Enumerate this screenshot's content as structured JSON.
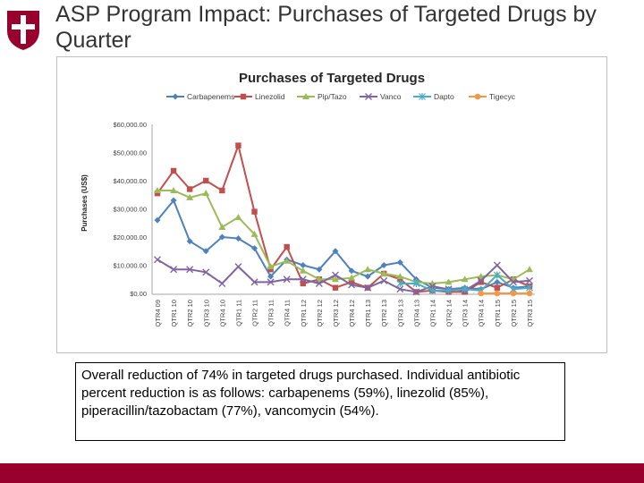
{
  "slide": {
    "title": "ASP Program Impact: Purchases of Targeted Drugs by Quarter",
    "note": "Overall reduction of 74% in targeted drugs purchased.  Individual antibiotic percent reduction is as follows: carbapenems (59%), linezolid (85%), piperacillin/tazobactam (77%), vancomycin (54%).",
    "colors": {
      "brand": "#98002e",
      "footer": "#98002e"
    }
  },
  "chart_data": {
    "type": "line",
    "title": "Purchases of Targeted Drugs",
    "ylabel": "Purchases (US$)",
    "xlabel": "",
    "ylim": [
      0,
      60000
    ],
    "yticks": [
      "$0.00",
      "$10,000.00",
      "$20,000.00",
      "$30,000.00",
      "$40,000.00",
      "$50,000.00",
      "$60,000.00"
    ],
    "grid": false,
    "legend": "top",
    "categories": [
      "QTR4 09",
      "QTR1 10",
      "QTR2 10",
      "QTR3 10",
      "QTR4 10",
      "QTR1 11",
      "QTR2 11",
      "QTR3 11",
      "QTR4 11",
      "QTR1 12",
      "QTR2 12",
      "QTR3 12",
      "QTR4 12",
      "QTR1 13",
      "QTR2 13",
      "QTR3 13",
      "QTR4 13",
      "QTR1 14",
      "QTR2 14",
      "QTR3 14",
      "QTR4 14",
      "QTR1 15",
      "QTR2 15",
      "QTR3 15"
    ],
    "series": [
      {
        "name": "Carbapenems",
        "color": "#4f81bd",
        "marker": "diamond",
        "values": [
          26000,
          33000,
          18500,
          15000,
          20000,
          19500,
          16000,
          6000,
          12000,
          10000,
          8500,
          15000,
          8000,
          6000,
          10000,
          11000,
          5000,
          2000,
          1500,
          2000,
          1500,
          4000,
          2000,
          2500
        ]
      },
      {
        "name": "Linezolid",
        "color": "#c0504d",
        "marker": "square",
        "values": [
          35500,
          43500,
          37000,
          40000,
          36500,
          52500,
          29000,
          8500,
          16500,
          3500,
          5000,
          2000,
          4000,
          2000,
          7000,
          5000,
          500,
          1000,
          500,
          500,
          4000,
          2000,
          5000,
          2500
        ]
      },
      {
        "name": "Pip/Tazo",
        "color": "#9bbb59",
        "marker": "triangle",
        "values": [
          36500,
          36500,
          34000,
          35500,
          23500,
          27000,
          21000,
          9500,
          11500,
          8000,
          5000,
          5000,
          5500,
          8500,
          7000,
          6000,
          4000,
          3500,
          4000,
          5000,
          6000,
          6500,
          5000,
          8500
        ]
      },
      {
        "name": "Vanco",
        "color": "#8064a2",
        "marker": "x",
        "values": [
          12000,
          8500,
          8500,
          7500,
          3500,
          9500,
          4000,
          4000,
          5000,
          5000,
          3500,
          6500,
          3000,
          2000,
          4500,
          1500,
          500,
          2500,
          1500,
          1000,
          4500,
          10000,
          4000,
          4500
        ]
      },
      {
        "name": "Dapto",
        "color": "#4bacc6",
        "marker": "star",
        "values": [
          null,
          null,
          null,
          null,
          null,
          null,
          null,
          null,
          null,
          null,
          null,
          null,
          null,
          null,
          null,
          3500,
          3500,
          1000,
          1000,
          1500,
          1000,
          6500,
          1500,
          2000
        ]
      },
      {
        "name": "Tigecyc",
        "color": "#f79646",
        "marker": "circle",
        "values": [
          null,
          null,
          null,
          null,
          null,
          null,
          null,
          null,
          null,
          null,
          null,
          null,
          null,
          null,
          null,
          null,
          null,
          null,
          null,
          null,
          0,
          0,
          0,
          0
        ]
      }
    ]
  }
}
